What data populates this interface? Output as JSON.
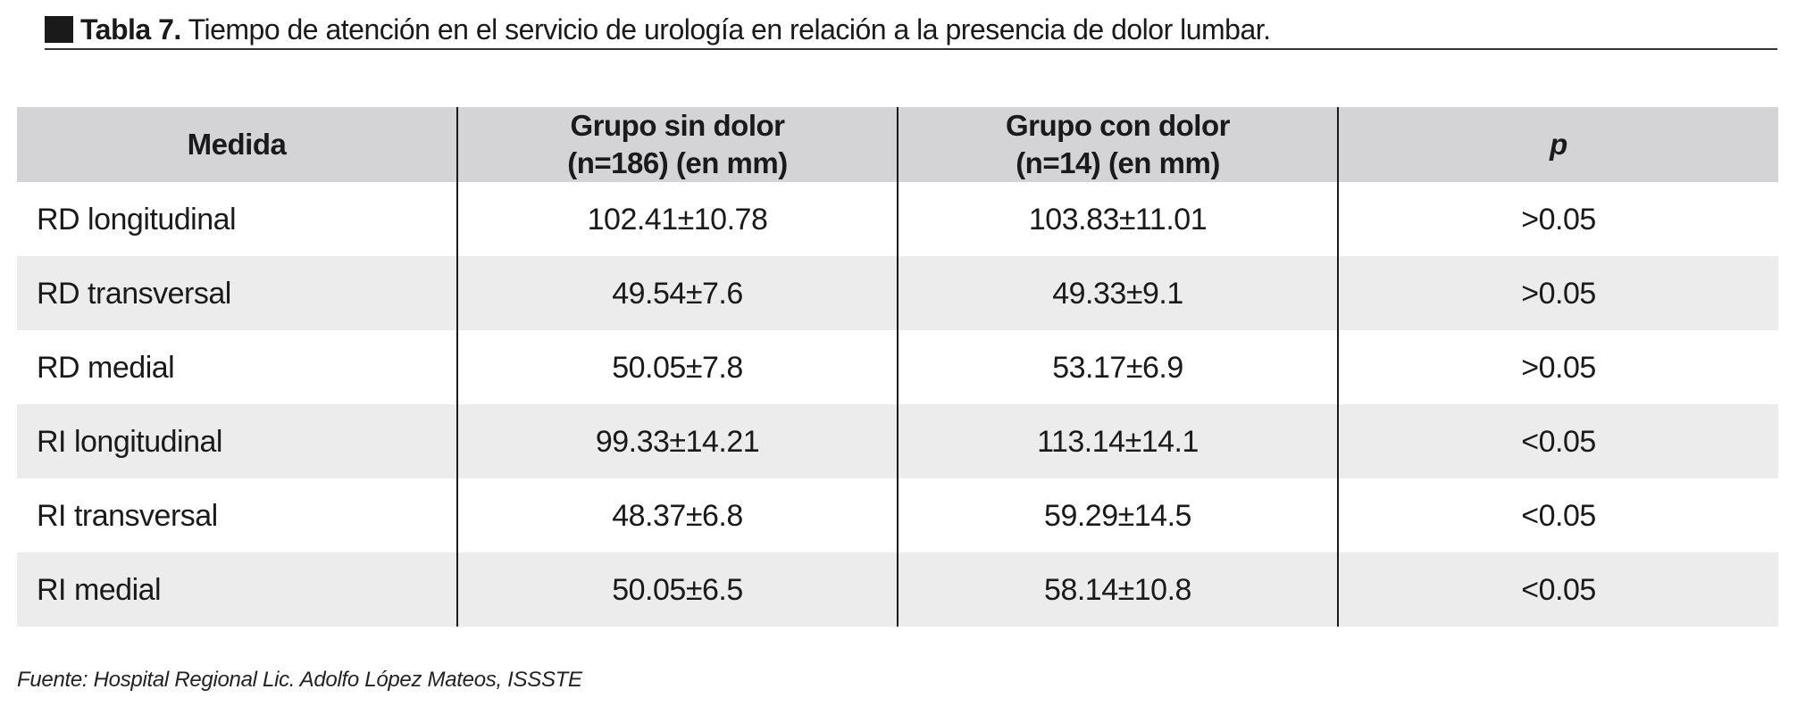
{
  "caption": {
    "label": "Tabla 7.",
    "text": "Tiempo de atención en el servicio de urología en relación a la presencia de dolor lumbar."
  },
  "table": {
    "headers": {
      "measure": "Medida",
      "group_no_pain_line1": "Grupo sin dolor",
      "group_no_pain_line2": "(n=186) (en mm)",
      "group_pain_line1": "Grupo con dolor",
      "group_pain_line2": "(n=14) (en mm)",
      "p": "p"
    },
    "rows": [
      {
        "measure": "RD longitudinal",
        "no_pain": "102.41±10.78",
        "pain": "103.83±11.01",
        "p": ">0.05"
      },
      {
        "measure": "RD transversal",
        "no_pain": "49.54±7.6",
        "pain": "49.33±9.1",
        "p": ">0.05"
      },
      {
        "measure": "RD medial",
        "no_pain": "50.05±7.8",
        "pain": "53.17±6.9",
        "p": ">0.05"
      },
      {
        "measure": "RI longitudinal",
        "no_pain": "99.33±14.21",
        "pain": "113.14±14.1",
        "p": "<0.05"
      },
      {
        "measure": "RI transversal",
        "no_pain": "48.37±6.8",
        "pain": "59.29±14.5",
        "p": "<0.05"
      },
      {
        "measure": "RI medial",
        "no_pain": "50.05±6.5",
        "pain": "58.14±10.8",
        "p": "<0.05"
      }
    ]
  },
  "source": "Fuente: Hospital Regional Lic. Adolfo López Mateos, ISSSTE",
  "colors": {
    "header_bg": "#d4d4d6",
    "shaded_row_bg": "#ececed",
    "text": "#1a1a1a"
  }
}
